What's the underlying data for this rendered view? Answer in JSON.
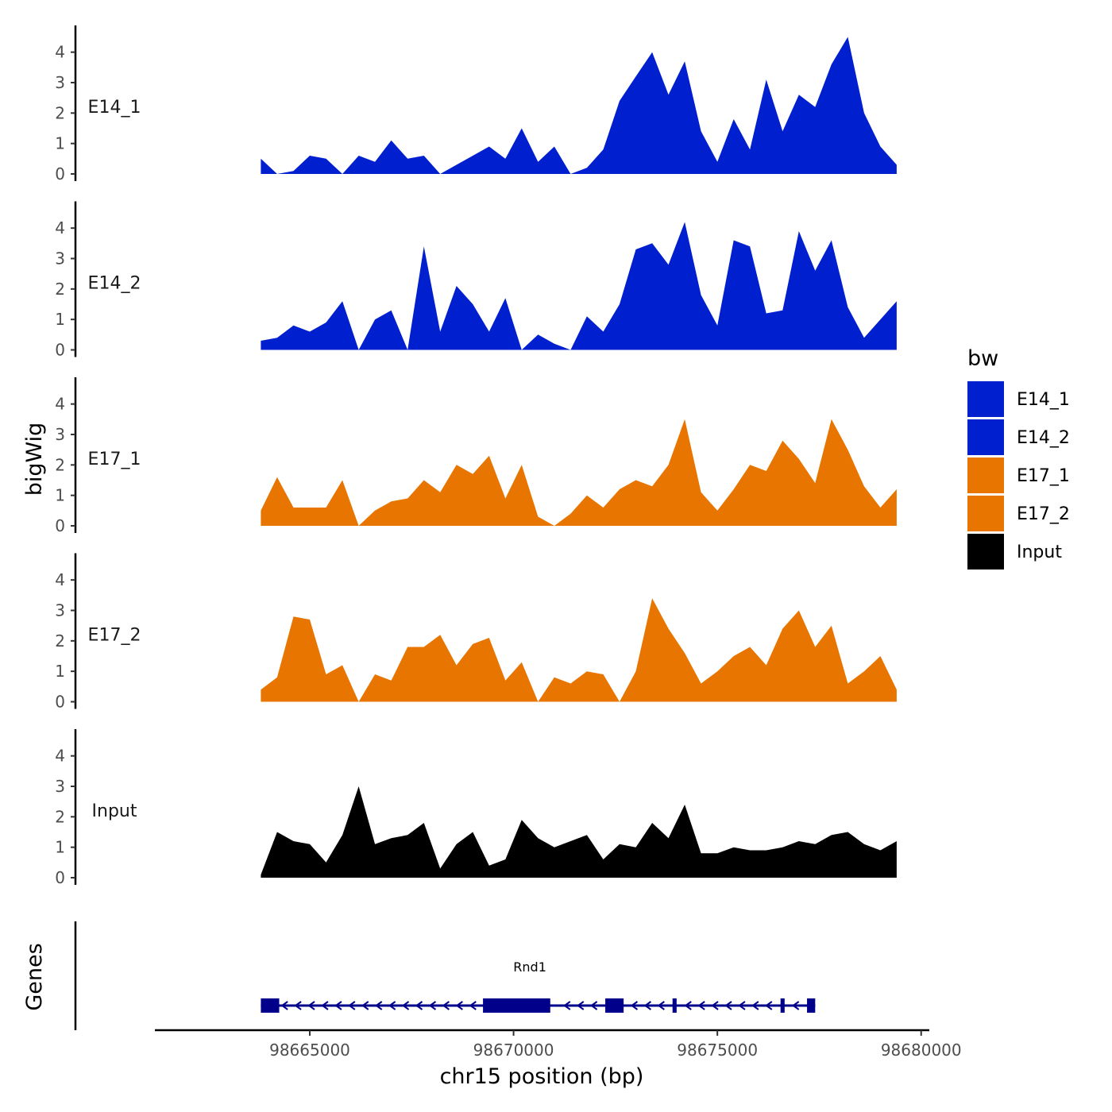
{
  "chart_data": {
    "type": "area",
    "ylabel": "bigWig",
    "xlabel": "chr15 position (bp)",
    "ylim": [
      0,
      4.8
    ],
    "y_ticks": [
      "0",
      "1",
      "2",
      "3",
      "4"
    ],
    "xlim": [
      98661200,
      98680200
    ],
    "x_ticks": [
      {
        "value": 98665000,
        "label": "98665000"
      },
      {
        "value": 98670000,
        "label": "98670000"
      },
      {
        "value": 98675000,
        "label": "98675000"
      },
      {
        "value": 98680000,
        "label": "98680000"
      }
    ],
    "x": [
      98663800,
      98664200,
      98664600,
      98665000,
      98665400,
      98665800,
      98666200,
      98666600,
      98667000,
      98667400,
      98667800,
      98668200,
      98668600,
      98669000,
      98669400,
      98669800,
      98670200,
      98670600,
      98671000,
      98671400,
      98671800,
      98672200,
      98672600,
      98673000,
      98673400,
      98673800,
      98674200,
      98674600,
      98675000,
      98675400,
      98675800,
      98676200,
      98676600,
      98677000,
      98677400,
      98677800,
      98678200,
      98678600,
      98679000,
      98679400
    ],
    "legend": {
      "title": "bw",
      "entries": [
        "E14_1",
        "E14_2",
        "E17_1",
        "E17_2",
        "Input"
      ]
    },
    "series": [
      {
        "name": "E14_1",
        "color": "#0020d0",
        "values": [
          0.5,
          0.0,
          0.1,
          0.6,
          0.5,
          0.0,
          0.6,
          0.4,
          1.1,
          0.5,
          0.6,
          0.0,
          0.3,
          0.6,
          0.9,
          0.5,
          1.5,
          0.4,
          0.9,
          0.0,
          0.2,
          0.8,
          2.4,
          3.2,
          4.0,
          2.6,
          3.7,
          1.4,
          0.4,
          1.8,
          0.8,
          3.1,
          1.4,
          2.6,
          2.2,
          3.6,
          4.5,
          2.0,
          0.9,
          0.3
        ]
      },
      {
        "name": "E14_2",
        "color": "#0020d0",
        "values": [
          0.3,
          0.4,
          0.8,
          0.6,
          0.9,
          1.6,
          0.0,
          1.0,
          1.3,
          0.0,
          3.4,
          0.6,
          2.1,
          1.5,
          0.6,
          1.7,
          0.0,
          0.5,
          0.2,
          0.0,
          1.1,
          0.6,
          1.5,
          3.3,
          3.5,
          2.8,
          4.2,
          1.8,
          0.8,
          3.6,
          3.4,
          1.2,
          1.3,
          3.9,
          2.6,
          3.6,
          1.4,
          0.4,
          1.0,
          1.6
        ]
      },
      {
        "name": "E17_1",
        "color": "#e87500",
        "values": [
          0.5,
          1.6,
          0.6,
          0.6,
          0.6,
          1.5,
          0.0,
          0.5,
          0.8,
          0.9,
          1.5,
          1.1,
          2.0,
          1.7,
          2.3,
          0.9,
          2.0,
          0.3,
          0.0,
          0.4,
          1.0,
          0.6,
          1.2,
          1.5,
          1.3,
          2.0,
          3.5,
          1.1,
          0.5,
          1.2,
          2.0,
          1.8,
          2.8,
          2.2,
          1.4,
          3.5,
          2.5,
          1.3,
          0.6,
          1.2
        ]
      },
      {
        "name": "E17_2",
        "color": "#e87500",
        "values": [
          0.4,
          0.8,
          2.8,
          2.7,
          0.9,
          1.2,
          0.0,
          0.9,
          0.7,
          1.8,
          1.8,
          2.2,
          1.2,
          1.9,
          2.1,
          0.7,
          1.3,
          0.0,
          0.8,
          0.6,
          1.0,
          0.9,
          0.0,
          1.0,
          3.4,
          2.4,
          1.6,
          0.6,
          1.0,
          1.5,
          1.8,
          1.2,
          2.4,
          3.0,
          1.8,
          2.5,
          0.6,
          1.0,
          1.5,
          0.4
        ]
      },
      {
        "name": "Input",
        "color": "#000000",
        "values": [
          0.1,
          1.5,
          1.2,
          1.1,
          0.5,
          1.4,
          3.0,
          1.1,
          1.3,
          1.4,
          1.8,
          0.3,
          1.1,
          1.5,
          0.4,
          0.6,
          1.9,
          1.3,
          1.0,
          1.2,
          1.4,
          0.6,
          1.1,
          1.0,
          1.8,
          1.3,
          2.4,
          0.8,
          0.8,
          1.0,
          0.9,
          0.9,
          1.0,
          1.2,
          1.1,
          1.4,
          1.5,
          1.1,
          0.9,
          1.2
        ]
      }
    ],
    "genes_panel": {
      "ylabel": "Genes",
      "gene": {
        "name": "Rnd1",
        "strand": "-",
        "color": "#00008b",
        "start": 98663800,
        "end": 98677400,
        "label_position": 98670400,
        "exons": [
          {
            "start": 98663800,
            "end": 98664250
          },
          {
            "start": 98669250,
            "end": 98670900
          },
          {
            "start": 98672250,
            "end": 98672700
          },
          {
            "start": 98673900,
            "end": 98674000
          },
          {
            "start": 98676550,
            "end": 98676650
          },
          {
            "start": 98677200,
            "end": 98677400
          }
        ]
      }
    }
  }
}
